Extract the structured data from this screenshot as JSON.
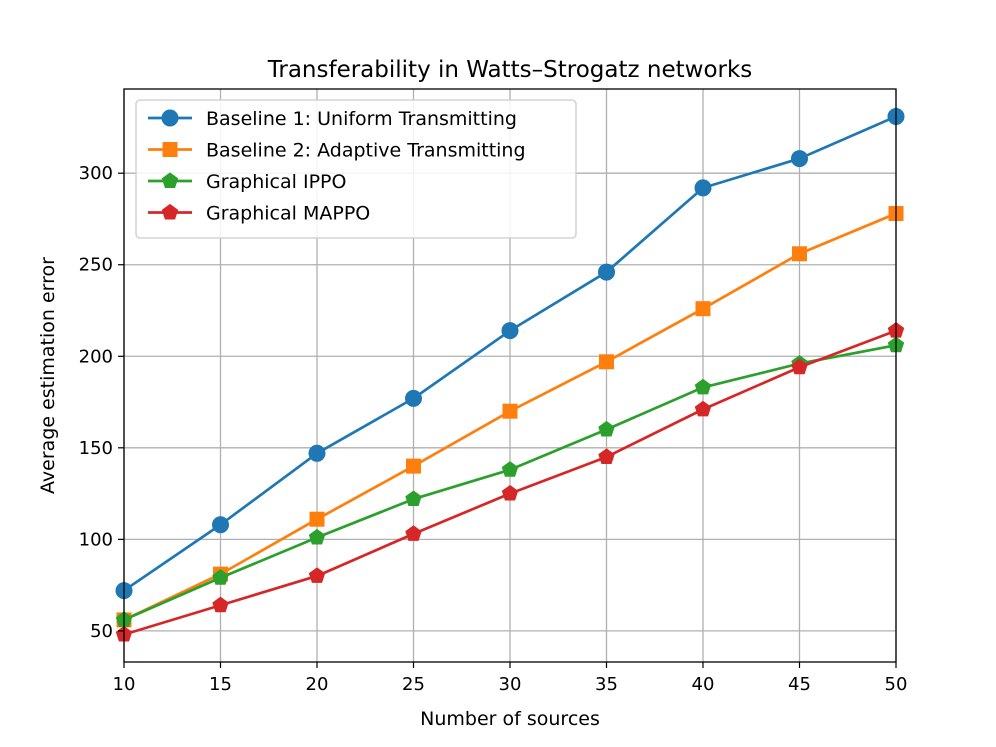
{
  "chart_data": {
    "type": "line",
    "title": "Transferability in Watts–Strogatz networks",
    "xlabel": "Number of sources",
    "ylabel": "Average estimation error",
    "x": [
      10,
      15,
      20,
      25,
      30,
      35,
      40,
      45,
      50
    ],
    "xlim": [
      10,
      50
    ],
    "ylim": [
      33,
      346
    ],
    "xticks": [
      10,
      15,
      20,
      25,
      30,
      35,
      40,
      45,
      50
    ],
    "yticks": [
      50,
      100,
      150,
      200,
      250,
      300
    ],
    "grid": true,
    "legend_position": "upper-left",
    "series": [
      {
        "name": "Baseline 1: Uniform Transmitting",
        "color": "#1f77b4",
        "marker": "circle",
        "values": [
          72,
          108,
          147,
          177,
          214,
          246,
          292,
          308,
          331
        ]
      },
      {
        "name": "Baseline 2: Adaptive Transmitting",
        "color": "#ff7f0e",
        "marker": "square",
        "values": [
          56,
          81,
          111,
          140,
          170,
          197,
          226,
          256,
          278
        ]
      },
      {
        "name": "Graphical IPPO",
        "color": "#2ca02c",
        "marker": "pentagon",
        "values": [
          56,
          79,
          101,
          122,
          138,
          160,
          183,
          196,
          206
        ]
      },
      {
        "name": "Graphical MAPPO",
        "color": "#d62728",
        "marker": "pentagon",
        "values": [
          48,
          64,
          80,
          103,
          125,
          145,
          171,
          194,
          214
        ]
      }
    ]
  }
}
